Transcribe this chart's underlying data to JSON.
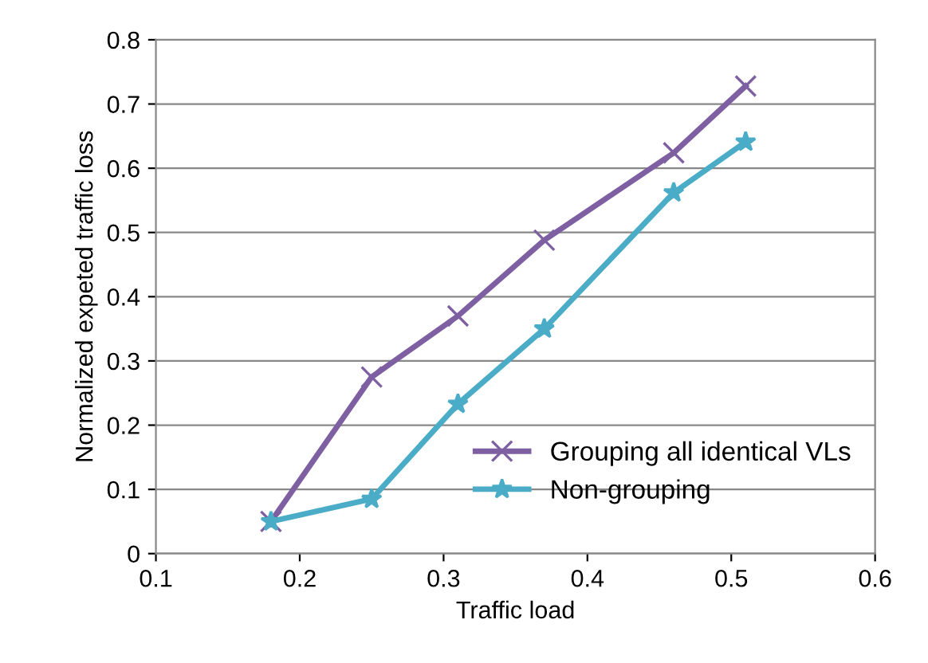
{
  "chart_data": {
    "type": "line",
    "xlabel": "Traffic load",
    "ylabel": "Normalized expeted traffic loss",
    "xlim": [
      0.1,
      0.6
    ],
    "xticks": [
      0.1,
      0.2,
      0.3,
      0.4,
      0.5,
      0.6
    ],
    "ylim": [
      0,
      0.8
    ],
    "yticks": [
      0,
      0.1,
      0.2,
      0.3,
      0.4,
      0.5,
      0.6,
      0.7,
      0.8
    ],
    "grid": "y",
    "legend": "bottom right",
    "series": [
      {
        "name": "Grouping all identical VLs",
        "color": "#7e60a2",
        "marker": "cross",
        "x": [
          0.18,
          0.25,
          0.31,
          0.37,
          0.46,
          0.51
        ],
        "values": [
          0.05,
          0.275,
          0.37,
          0.488,
          0.624,
          0.728
        ]
      },
      {
        "name": "Non-grouping",
        "color": "#4aacc6",
        "marker": "star",
        "x": [
          0.18,
          0.25,
          0.31,
          0.37,
          0.46,
          0.51
        ],
        "values": [
          0.05,
          0.085,
          0.233,
          0.35,
          0.562,
          0.641
        ]
      }
    ]
  }
}
